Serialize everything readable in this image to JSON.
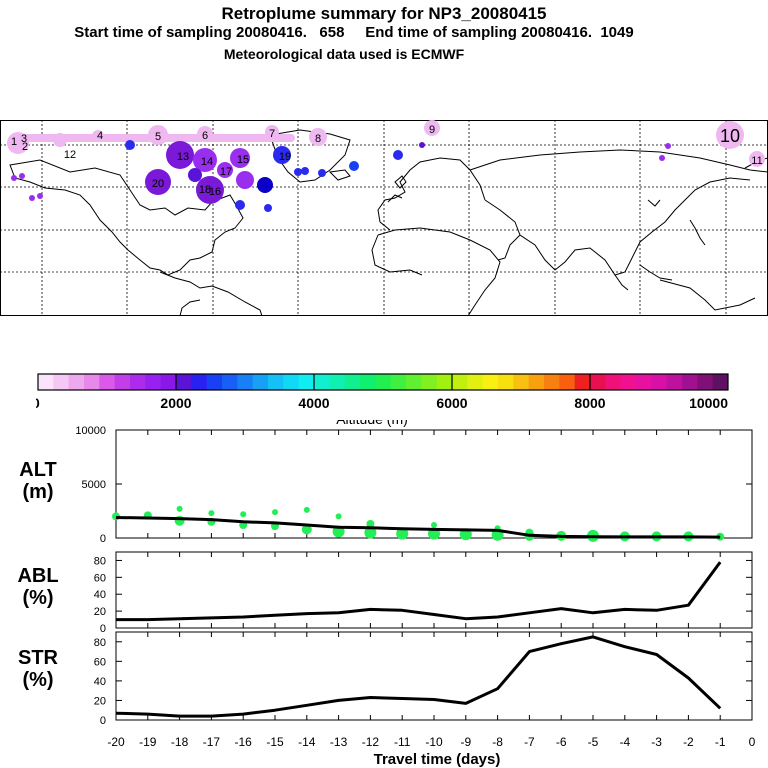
{
  "header": {
    "title": "Retroplume summary for NP3_20080415",
    "sampling": "Start time of sampling 20080416.   658     End time of sampling 20080416.  1049",
    "met": "Meteorological data used is ECMWF"
  },
  "map": {
    "plume_labels": [
      "1",
      "2",
      "3",
      "4",
      "5",
      "6",
      "7",
      "8",
      "9",
      "10",
      "11",
      "12",
      "13",
      "14",
      "15",
      "16",
      "17",
      "18",
      "19",
      "20"
    ],
    "colors": {
      "pink": "#f0b8f0",
      "violet": "#9a2ef0",
      "purple": "#7a1ad8",
      "blue": "#2a2af0",
      "darkblue": "#0a00c8"
    }
  },
  "colorbar": {
    "ticks": [
      "0",
      "2000",
      "4000",
      "6000",
      "8000",
      "10000"
    ],
    "label": "Altitude (m)",
    "colors": [
      "#fbe3fb",
      "#f5c7f5",
      "#eea8ee",
      "#e888e8",
      "#da58ea",
      "#c43ee8",
      "#ad2cec",
      "#9820f0",
      "#8a18e8",
      "#5a14d8",
      "#2a20f0",
      "#1840f5",
      "#1860f5",
      "#1880f5",
      "#18a0f5",
      "#14c0f5",
      "#10d8f5",
      "#10ecf0",
      "#10f0d0",
      "#10f0b0",
      "#10f090",
      "#10f070",
      "#20f050",
      "#40f040",
      "#60f030",
      "#80f020",
      "#a0f010",
      "#c0f010",
      "#e0f010",
      "#f8f010",
      "#f8e010",
      "#f8c010",
      "#f8a010",
      "#f88010",
      "#f86010",
      "#f02020",
      "#e81050",
      "#f0107a",
      "#f01090",
      "#e810a0",
      "#d810a8",
      "#c010a0",
      "#a01090",
      "#801078",
      "#601060"
    ]
  },
  "chart_data": [
    {
      "type": "line",
      "name": "ALT",
      "ylabel": "ALT\n(m)",
      "y_ticks": [
        "0",
        "5000",
        "10000"
      ],
      "ylim": [
        0,
        10000
      ],
      "x": [
        -20,
        -19,
        -18,
        -17,
        -16,
        -15,
        -14,
        -13,
        -12,
        -11,
        -10,
        -9,
        -8,
        -7,
        -6,
        -5,
        -4,
        -3,
        -2,
        -1
      ],
      "values": [
        1900,
        1850,
        1800,
        1700,
        1500,
        1400,
        1200,
        1000,
        950,
        850,
        800,
        750,
        700,
        250,
        150,
        120,
        100,
        100,
        100,
        80
      ],
      "dots": [
        {
          "x": -20,
          "y": 2000,
          "s": 4
        },
        {
          "x": -19,
          "y": 2100,
          "s": 4
        },
        {
          "x": -18,
          "y": 2700,
          "s": 3
        },
        {
          "x": -18,
          "y": 1600,
          "s": 5
        },
        {
          "x": -17,
          "y": 2300,
          "s": 3
        },
        {
          "x": -17,
          "y": 1500,
          "s": 4
        },
        {
          "x": -16,
          "y": 2200,
          "s": 3
        },
        {
          "x": -16,
          "y": 1200,
          "s": 4
        },
        {
          "x": -15,
          "y": 2400,
          "s": 3
        },
        {
          "x": -15,
          "y": 1100,
          "s": 4
        },
        {
          "x": -14,
          "y": 2600,
          "s": 3
        },
        {
          "x": -14,
          "y": 800,
          "s": 5
        },
        {
          "x": -13,
          "y": 2000,
          "s": 3
        },
        {
          "x": -13,
          "y": 600,
          "s": 6
        },
        {
          "x": -12,
          "y": 1300,
          "s": 4
        },
        {
          "x": -12,
          "y": 500,
          "s": 6
        },
        {
          "x": -11,
          "y": 400,
          "s": 6
        },
        {
          "x": -10,
          "y": 1200,
          "s": 3
        },
        {
          "x": -10,
          "y": 400,
          "s": 6
        },
        {
          "x": -9,
          "y": 350,
          "s": 6
        },
        {
          "x": -8,
          "y": 900,
          "s": 3
        },
        {
          "x": -8,
          "y": 300,
          "s": 6
        },
        {
          "x": -7,
          "y": 500,
          "s": 4
        },
        {
          "x": -7,
          "y": 200,
          "s": 5
        },
        {
          "x": -6,
          "y": 200,
          "s": 5
        },
        {
          "x": -5,
          "y": 200,
          "s": 6
        },
        {
          "x": -4,
          "y": 150,
          "s": 5
        },
        {
          "x": -3,
          "y": 150,
          "s": 5
        },
        {
          "x": -2,
          "y": 150,
          "s": 5
        },
        {
          "x": -1,
          "y": 120,
          "s": 4
        }
      ]
    },
    {
      "type": "line",
      "name": "ABL",
      "ylabel": "ABL\n(%)",
      "y_ticks": [
        "0",
        "20",
        "40",
        "60",
        "80"
      ],
      "ylim": [
        0,
        90
      ],
      "x": [
        -20,
        -19,
        -18,
        -17,
        -16,
        -15,
        -14,
        -13,
        -12,
        -11,
        -10,
        -9,
        -8,
        -7,
        -6,
        -5,
        -4,
        -3,
        -2,
        -1
      ],
      "values": [
        10,
        10,
        11,
        12,
        13,
        15,
        17,
        18,
        22,
        21,
        16,
        11,
        13,
        18,
        23,
        18,
        22,
        21,
        27,
        78
      ]
    },
    {
      "type": "line",
      "name": "STR",
      "ylabel": "STR\n(%)",
      "y_ticks": [
        "0",
        "20",
        "40",
        "60",
        "80"
      ],
      "ylim": [
        0,
        90
      ],
      "x": [
        -20,
        -19,
        -18,
        -17,
        -16,
        -15,
        -14,
        -13,
        -12,
        -11,
        -10,
        -9,
        -8,
        -7,
        -6,
        -5,
        -4,
        -3,
        -2,
        -1
      ],
      "values": [
        7,
        6,
        4,
        4,
        6,
        10,
        15,
        20,
        23,
        22,
        21,
        17,
        32,
        70,
        78,
        85,
        75,
        67,
        43,
        12
      ]
    }
  ],
  "xaxis": {
    "tick_labels": [
      "-20",
      "-19",
      "-18",
      "-17",
      "-16",
      "-15",
      "-14",
      "-13",
      "-12",
      "-11",
      "-10",
      "-9",
      "-8",
      "-7",
      "-6",
      "-5",
      "-4",
      "-3",
      "-2",
      "-1",
      "0"
    ],
    "label": "Travel time (days)"
  }
}
